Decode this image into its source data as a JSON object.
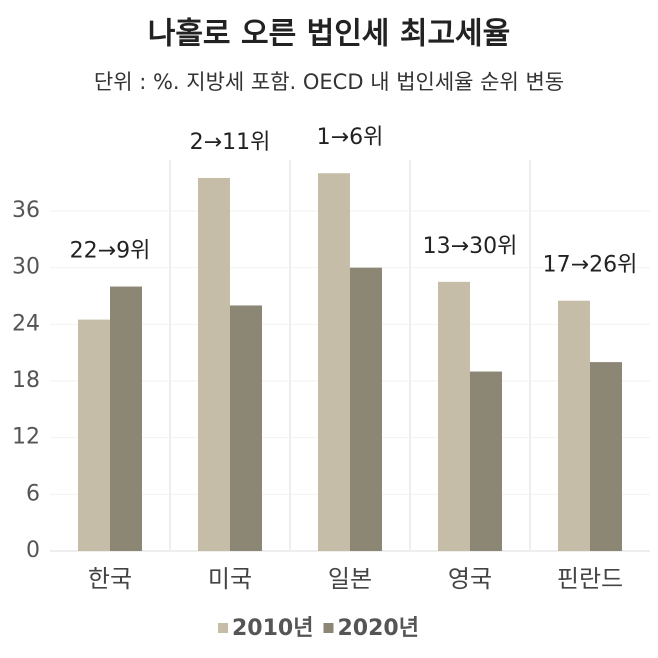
{
  "chart_data": {
    "type": "bar",
    "title": "나홀로 오른 법인세 최고세율",
    "subtitle": "단위 : %. 지방세 포함. OECD 내 법인세율 순위 변동",
    "categories": [
      "한국",
      "미국",
      "일본",
      "영국",
      "핀란드"
    ],
    "annotations": [
      "22→9위",
      "2→11위",
      "1→6위",
      "13→30위",
      "17→26위"
    ],
    "series": [
      {
        "name": "2010년",
        "color": "#c5bda8",
        "values": [
          24.5,
          39.5,
          40,
          28.5,
          26.5
        ]
      },
      {
        "name": "2020년",
        "color": "#8c8674",
        "values": [
          28,
          26,
          30,
          19,
          20
        ]
      }
    ],
    "ylim": [
      0,
      41.4
    ],
    "yticks": [
      0,
      6,
      12,
      18,
      24,
      30,
      36
    ],
    "grid": true,
    "legend": "bottom"
  }
}
